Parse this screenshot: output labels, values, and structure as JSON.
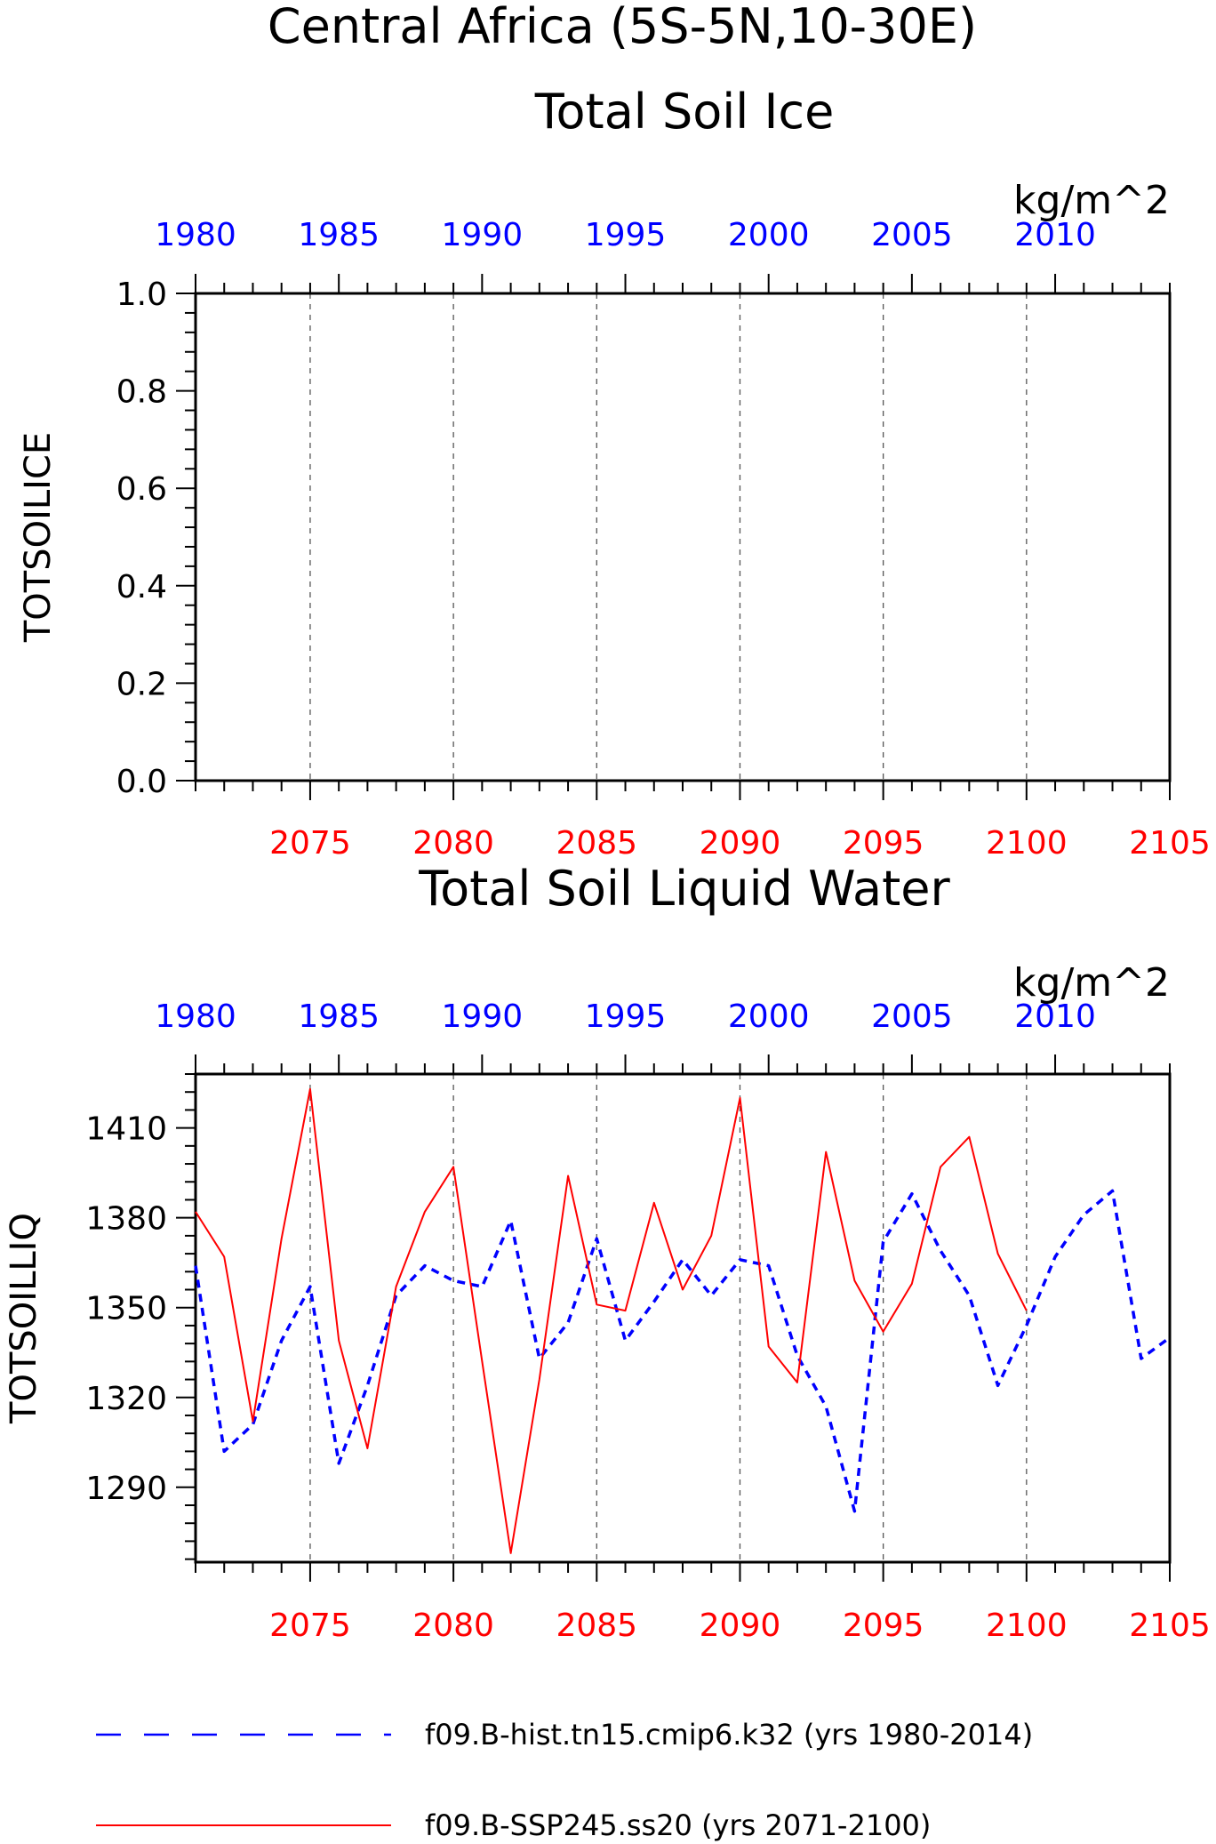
{
  "title": {
    "line1": "Central Africa (5S-5N,10-30E)",
    "line2": "Total Soil Ice"
  },
  "colors": {
    "hist": "#0000ff",
    "ssp": "#ff0000",
    "axis": "#000000",
    "grid": "#555555"
  },
  "chart_data": [
    {
      "type": "line",
      "title": "Total Soil Ice",
      "units": "kg/m^2",
      "ylabel": "TOTSOILICE",
      "ylim": [
        0,
        1
      ],
      "yticks": [
        0.0,
        0.2,
        0.4,
        0.6,
        0.8,
        1.0
      ],
      "ytick_labels": [
        "0.0",
        "0.2",
        "0.4",
        "0.6",
        "0.8",
        "1.0"
      ],
      "top_axis": {
        "ticks": [
          1980,
          1985,
          1990,
          1995,
          2000,
          2005,
          2010
        ],
        "range": [
          1980,
          2014
        ]
      },
      "bottom_axis": {
        "ticks": [
          2075,
          2080,
          2085,
          2090,
          2095,
          2100,
          2105
        ],
        "range": [
          2071,
          2105
        ]
      },
      "gridlines_x": [
        2075,
        2080,
        2085,
        2090,
        2095,
        2100
      ],
      "series": []
    },
    {
      "type": "line",
      "title": "Total Soil Liquid Water",
      "units": "kg/m^2",
      "ylabel": "TOTSOILLIQ",
      "ylim": [
        1265,
        1428
      ],
      "yticks": [
        1290,
        1320,
        1350,
        1380,
        1410
      ],
      "ytick_labels": [
        "1290",
        "1320",
        "1350",
        "1380",
        "1410"
      ],
      "top_axis": {
        "ticks": [
          1980,
          1985,
          1990,
          1995,
          2000,
          2005,
          2010
        ],
        "range": [
          1980,
          2014
        ]
      },
      "bottom_axis": {
        "ticks": [
          2075,
          2080,
          2085,
          2090,
          2095,
          2100,
          2105
        ],
        "range": [
          2071,
          2105
        ]
      },
      "gridlines_x": [
        2075,
        2080,
        2085,
        2090,
        2095,
        2100
      ],
      "series": [
        {
          "name": "f09.B-hist.tn15.cmip6.k32 (yrs 1980-2014)",
          "axis": "top",
          "style": "dashed",
          "x": [
            1980,
            1981,
            1982,
            1983,
            1984,
            1985,
            1986,
            1987,
            1988,
            1989,
            1990,
            1991,
            1992,
            1993,
            1994,
            1995,
            1996,
            1997,
            1998,
            1999,
            2000,
            2001,
            2002,
            2003,
            2004,
            2005,
            2006,
            2007,
            2008,
            2009,
            2010,
            2011,
            2012,
            2013,
            2014
          ],
          "y": [
            1364,
            1302,
            1311,
            1339,
            1357,
            1298,
            1324,
            1354,
            1364,
            1359,
            1357,
            1379,
            1333,
            1345,
            1373,
            1339,
            1352,
            1366,
            1354,
            1366,
            1364,
            1334,
            1317,
            1282,
            1372,
            1388,
            1369,
            1354,
            1324,
            1344,
            1367,
            1381,
            1389,
            1333,
            1340
          ]
        },
        {
          "name": "f09.B-SSP245.ss20 (yrs 2071-2100)",
          "axis": "bottom",
          "style": "solid",
          "x": [
            2071,
            2072,
            2073,
            2074,
            2075,
            2076,
            2077,
            2078,
            2079,
            2080,
            2081,
            2082,
            2083,
            2084,
            2085,
            2086,
            2087,
            2088,
            2089,
            2090,
            2091,
            2092,
            2093,
            2094,
            2095,
            2096,
            2097,
            2098,
            2099,
            2100
          ],
          "y": [
            1382,
            1367,
            1312,
            1373,
            1423,
            1339,
            1303,
            1357,
            1382,
            1397,
            1332,
            1268,
            1326,
            1394,
            1351,
            1349,
            1385,
            1356,
            1374,
            1420,
            1337,
            1325,
            1402,
            1359,
            1342,
            1358,
            1397,
            1407,
            1368,
            1349
          ]
        }
      ]
    }
  ],
  "legend": {
    "hist_label": "f09.B-hist.tn15.cmip6.k32 (yrs 1980-2014)",
    "ssp_label": "f09.B-SSP245.ss20 (yrs 2071-2100)"
  }
}
